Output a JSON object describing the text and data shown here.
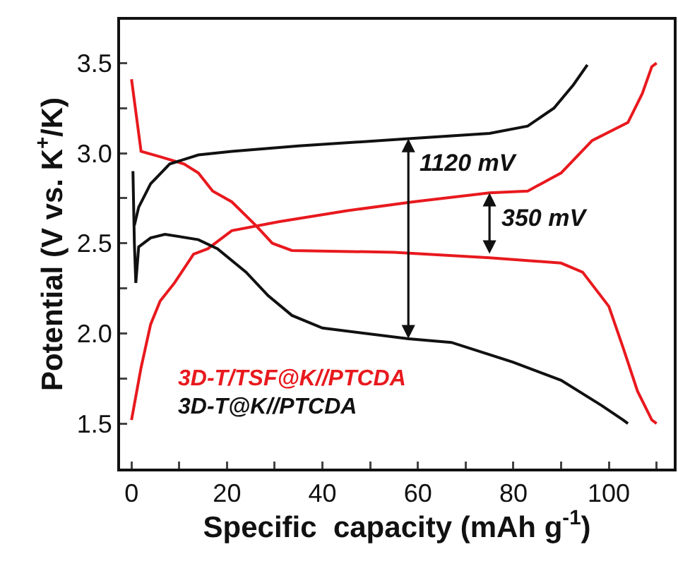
{
  "chart_data": {
    "type": "line",
    "xlabel": "Specific  capacity (mAh g$^{-1}$)",
    "ylabel": "Potential (V vs. K$^{+}$/K)",
    "xlim": [
      -2.4,
      113.6
    ],
    "ylim": [
      1.25,
      3.74
    ],
    "xticks": [
      0,
      {
        "value": 10,
        "label": null
      },
      20,
      {
        "value": 30,
        "label": null
      },
      40,
      {
        "value": 50,
        "label": null
      },
      60,
      {
        "value": 70,
        "label": null
      },
      80,
      {
        "value": 90,
        "label": null
      },
      100,
      {
        "value": 110,
        "label": null
      }
    ],
    "yticks": [
      {
        "value": 1.5,
        "label": "1.5"
      },
      {
        "value": 1.75,
        "label": null
      },
      {
        "value": 2.0,
        "label": "2.0"
      },
      {
        "value": 2.25,
        "label": null
      },
      {
        "value": 2.5,
        "label": "2.5"
      },
      {
        "value": 2.75,
        "label": null
      },
      {
        "value": 3.0,
        "label": "3.0"
      },
      {
        "value": 3.25,
        "label": null
      },
      {
        "value": 3.5,
        "label": "3.5"
      }
    ],
    "grid": false,
    "marker": "none",
    "line_style": "solid",
    "series": [
      {
        "name": "3D-T/TSF@K//PTCDA",
        "color": "#e8191e",
        "x": [
          0,
          2,
          6,
          11,
          14,
          17,
          21,
          26,
          29.5,
          33.6,
          55,
          75,
          90,
          94.5,
          100,
          103,
          106,
          109,
          110
        ],
        "values": [
          3.41,
          3.01,
          2.98,
          2.94,
          2.89,
          2.79,
          2.73,
          2.6,
          2.5,
          2.46,
          2.45,
          2.42,
          2.39,
          2.34,
          2.15,
          1.92,
          1.68,
          1.52,
          1.5
        ]
      },
      {
        "color": "#e8191e",
        "x": [
          0,
          2,
          4,
          6,
          9,
          13,
          16,
          21,
          31,
          45,
          59,
          75,
          83,
          90,
          96.5,
          104,
          107,
          109,
          110
        ],
        "values": [
          1.52,
          1.81,
          2.05,
          2.18,
          2.28,
          2.44,
          2.47,
          2.57,
          2.62,
          2.68,
          2.73,
          2.78,
          2.79,
          2.89,
          3.07,
          3.17,
          3.33,
          3.48,
          3.5
        ]
      },
      {
        "name": "3D-T@K//PTCDA",
        "color": "#111111",
        "x": [
          0.3,
          0.6,
          0.9,
          1.5,
          4,
          7,
          14,
          18,
          24,
          28.6,
          33.6,
          40,
          58,
          67,
          80,
          90,
          98.5,
          103,
          104
        ],
        "values": [
          2.9,
          2.5,
          2.28,
          2.48,
          2.53,
          2.55,
          2.52,
          2.47,
          2.34,
          2.21,
          2.1,
          2.03,
          1.97,
          1.95,
          1.84,
          1.74,
          1.6,
          1.52,
          1.5
        ]
      },
      {
        "color": "#111111",
        "x": [
          0.6,
          1.5,
          4,
          8,
          14,
          21,
          35,
          58,
          75,
          83,
          88.5,
          92.6,
          95.5
        ],
        "values": [
          2.6,
          2.7,
          2.83,
          2.94,
          2.99,
          3.01,
          3.04,
          3.08,
          3.11,
          3.15,
          3.25,
          3.38,
          3.49
        ]
      }
    ],
    "annotations": [
      {
        "text": "1120 mV",
        "x": 58,
        "y": 3.08
      },
      {
        "text": "350 mV",
        "x": 75,
        "y": 2.78
      }
    ]
  }
}
